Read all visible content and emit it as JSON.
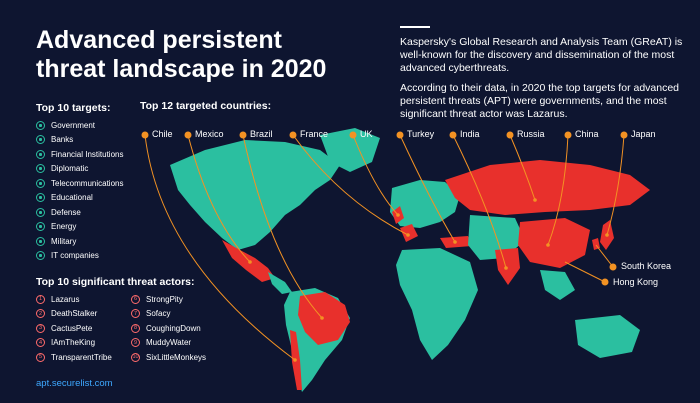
{
  "title": "Advanced persistent threat landscape in 2020",
  "intro": {
    "p1": "Kaspersky's Global Research and Analysis Team (GReAT) is well-known for the discovery and dissemination of the most advanced cyberthreats.",
    "p2": "According to their data, in 2020 the top targets for advanced persistent threats (APT) were governments, and the most significant threat actor was Lazarus."
  },
  "targets": {
    "title": "Top 10 targets:",
    "items": [
      "Government",
      "Banks",
      "Financial Institutions",
      "Diplomatic",
      "Telecommunications",
      "Educational",
      "Defense",
      "Energy",
      "Military",
      "IT companies"
    ]
  },
  "countries": {
    "title": "Top 12 targeted countries:",
    "items": [
      "Chile",
      "Mexico",
      "Brazil",
      "France",
      "UK",
      "Turkey",
      "India",
      "Russia",
      "China",
      "Japan",
      "South Korea",
      "Hong Kong"
    ]
  },
  "actors": {
    "title": "Top 10 significant threat actors:",
    "items": [
      {
        "num": "1",
        "name": "Lazarus"
      },
      {
        "num": "2",
        "name": "DeathStalker"
      },
      {
        "num": "3",
        "name": "CactusPete"
      },
      {
        "num": "4",
        "name": "IAmTheKing"
      },
      {
        "num": "5",
        "name": "TransparentTribe"
      },
      {
        "num": "6",
        "name": "StrongPity"
      },
      {
        "num": "7",
        "name": "Sofacy"
      },
      {
        "num": "8",
        "name": "CoughingDown"
      },
      {
        "num": "9",
        "name": "MuddyWater"
      },
      {
        "num": "10",
        "name": "SixLittleMonkeys"
      }
    ]
  },
  "footer": {
    "link": "apt.securelist.com"
  },
  "colors": {
    "background": "#0e1530",
    "land": "#2bbfa0",
    "highlight": "#e8302c",
    "marker": "#f39223",
    "link": "#3ea8ff"
  }
}
